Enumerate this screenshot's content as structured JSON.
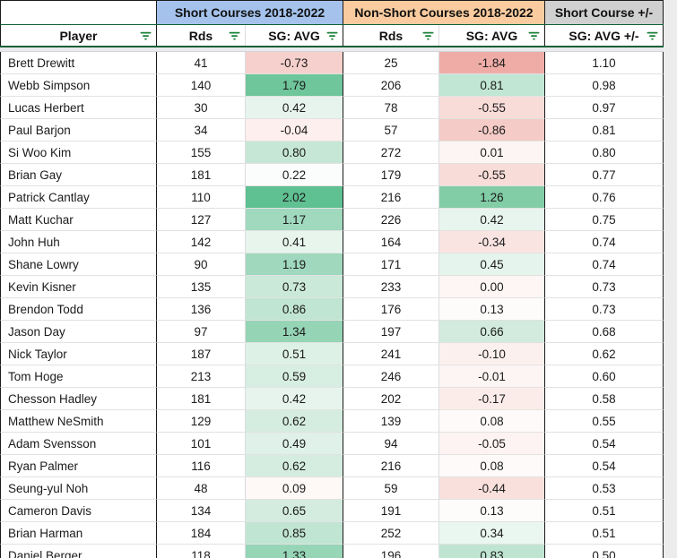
{
  "sheet": {
    "group_headers": {
      "short": "Short Courses 2018-2022",
      "nonshort": "Non-Short Courses 2018-2022",
      "diff": "Short Course +/-"
    },
    "columns": {
      "player": "Player",
      "rds1": "Rds",
      "sg1": "SG: AVG",
      "rds2": "Rds",
      "sg2": "SG: AVG",
      "diff": "SG: AVG +/-"
    },
    "colors": {
      "short_header_bg": "#a4c2ec",
      "nonshort_header_bg": "#f9cb9e",
      "diff_header_bg": "#d0d0d0",
      "filter_icon": "#188038",
      "filter_border": "#0b5e34",
      "scale_positive_max": "#57bb8a",
      "scale_negative_min": "#e67c73"
    },
    "rows": [
      {
        "player": "Brett Drewitt",
        "rds1": "41",
        "sg1": "-0.73",
        "sg1_bg": "#f6d0cc",
        "rds2": "25",
        "sg2": "-1.84",
        "sg2_bg": "#efaca6",
        "diff": "1.10"
      },
      {
        "player": "Webb Simpson",
        "rds1": "140",
        "sg1": "1.79",
        "sg1_bg": "#6ec69a",
        "rds2": "206",
        "sg2": "0.81",
        "sg2_bg": "#c1e6d3",
        "diff": "0.98"
      },
      {
        "player": "Lucas Herbert",
        "rds1": "30",
        "sg1": "0.42",
        "sg1_bg": "#e6f4ed",
        "rds2": "78",
        "sg2": "-0.55",
        "sg2_bg": "#f8dcd8",
        "diff": "0.97"
      },
      {
        "player": "Paul Barjon",
        "rds1": "34",
        "sg1": "-0.04",
        "sg1_bg": "#fdefed",
        "rds2": "57",
        "sg2": "-0.86",
        "sg2_bg": "#f4cbc6",
        "diff": "0.81"
      },
      {
        "player": "Si Woo Kim",
        "rds1": "155",
        "sg1": "0.80",
        "sg1_bg": "#c6e7d6",
        "rds2": "272",
        "sg2": "0.01",
        "sg2_bg": "#fdf5f4",
        "diff": "0.80"
      },
      {
        "player": "Brian Gay",
        "rds1": "181",
        "sg1": "0.22",
        "sg1_bg": "#fbfdfc",
        "rds2": "179",
        "sg2": "-0.55",
        "sg2_bg": "#f8dcd8",
        "diff": "0.77"
      },
      {
        "player": "Patrick Cantlay",
        "rds1": "110",
        "sg1": "2.02",
        "sg1_bg": "#5fc091",
        "rds2": "216",
        "sg2": "1.26",
        "sg2_bg": "#82cda6",
        "diff": "0.76"
      },
      {
        "player": "Matt Kuchar",
        "rds1": "127",
        "sg1": "1.17",
        "sg1_bg": "#a0d9bd",
        "rds2": "226",
        "sg2": "0.42",
        "sg2_bg": "#e7f5ee",
        "diff": "0.75"
      },
      {
        "player": "John Huh",
        "rds1": "142",
        "sg1": "0.41",
        "sg1_bg": "#e7f5ed",
        "rds2": "164",
        "sg2": "-0.34",
        "sg2_bg": "#fae4e1",
        "diff": "0.74"
      },
      {
        "player": "Shane Lowry",
        "rds1": "90",
        "sg1": "1.19",
        "sg1_bg": "#9fd8bc",
        "rds2": "171",
        "sg2": "0.45",
        "sg2_bg": "#e5f4ec",
        "diff": "0.74"
      },
      {
        "player": "Kevin Kisner",
        "rds1": "135",
        "sg1": "0.73",
        "sg1_bg": "#cbe9d9",
        "rds2": "233",
        "sg2": "0.00",
        "sg2_bg": "#fdf6f5",
        "diff": "0.73"
      },
      {
        "player": "Brendon Todd",
        "rds1": "136",
        "sg1": "0.86",
        "sg1_bg": "#c0e5d2",
        "rds2": "176",
        "sg2": "0.13",
        "sg2_bg": "#fefbfb",
        "diff": "0.73"
      },
      {
        "player": "Jason Day",
        "rds1": "97",
        "sg1": "1.34",
        "sg1_bg": "#95d5b5",
        "rds2": "197",
        "sg2": "0.66",
        "sg2_bg": "#d2ebde",
        "diff": "0.68"
      },
      {
        "player": "Nick Taylor",
        "rds1": "187",
        "sg1": "0.51",
        "sg1_bg": "#def1e7",
        "rds2": "241",
        "sg2": "-0.10",
        "sg2_bg": "#fcf0ee",
        "diff": "0.62"
      },
      {
        "player": "Tom Hoge",
        "rds1": "213",
        "sg1": "0.59",
        "sg1_bg": "#d7eee2",
        "rds2": "246",
        "sg2": "-0.01",
        "sg2_bg": "#fdf5f4",
        "diff": "0.60"
      },
      {
        "player": "Chesson Hadley",
        "rds1": "181",
        "sg1": "0.42",
        "sg1_bg": "#e6f4ed",
        "rds2": "202",
        "sg2": "-0.17",
        "sg2_bg": "#fcece9",
        "diff": "0.58"
      },
      {
        "player": "Matthew NeSmith",
        "rds1": "129",
        "sg1": "0.62",
        "sg1_bg": "#d5ede1",
        "rds2": "139",
        "sg2": "0.08",
        "sg2_bg": "#fefaf9",
        "diff": "0.55"
      },
      {
        "player": "Adam Svensson",
        "rds1": "101",
        "sg1": "0.49",
        "sg1_bg": "#dff1e8",
        "rds2": "94",
        "sg2": "-0.05",
        "sg2_bg": "#fdf3f2",
        "diff": "0.54"
      },
      {
        "player": "Ryan Palmer",
        "rds1": "116",
        "sg1": "0.62",
        "sg1_bg": "#d5ede1",
        "rds2": "216",
        "sg2": "0.08",
        "sg2_bg": "#fefaf9",
        "diff": "0.54"
      },
      {
        "player": "Seung-yul Noh",
        "rds1": "48",
        "sg1": "0.09",
        "sg1_bg": "#fef8f7",
        "rds2": "59",
        "sg2": "-0.44",
        "sg2_bg": "#f9e0dc",
        "diff": "0.53"
      },
      {
        "player": "Cameron Davis",
        "rds1": "134",
        "sg1": "0.65",
        "sg1_bg": "#d3ecdf",
        "rds2": "191",
        "sg2": "0.13",
        "sg2_bg": "#fefbfb",
        "diff": "0.51"
      },
      {
        "player": "Brian Harman",
        "rds1": "184",
        "sg1": "0.85",
        "sg1_bg": "#c1e5d3",
        "rds2": "252",
        "sg2": "0.34",
        "sg2_bg": "#eaf7f0",
        "diff": "0.51"
      },
      {
        "player": "Daniel Berger",
        "rds1": "118",
        "sg1": "1.33",
        "sg1_bg": "#96d5b6",
        "rds2": "196",
        "sg2": "0.83",
        "sg2_bg": "#bfe5d2",
        "diff": "0.50"
      }
    ]
  }
}
